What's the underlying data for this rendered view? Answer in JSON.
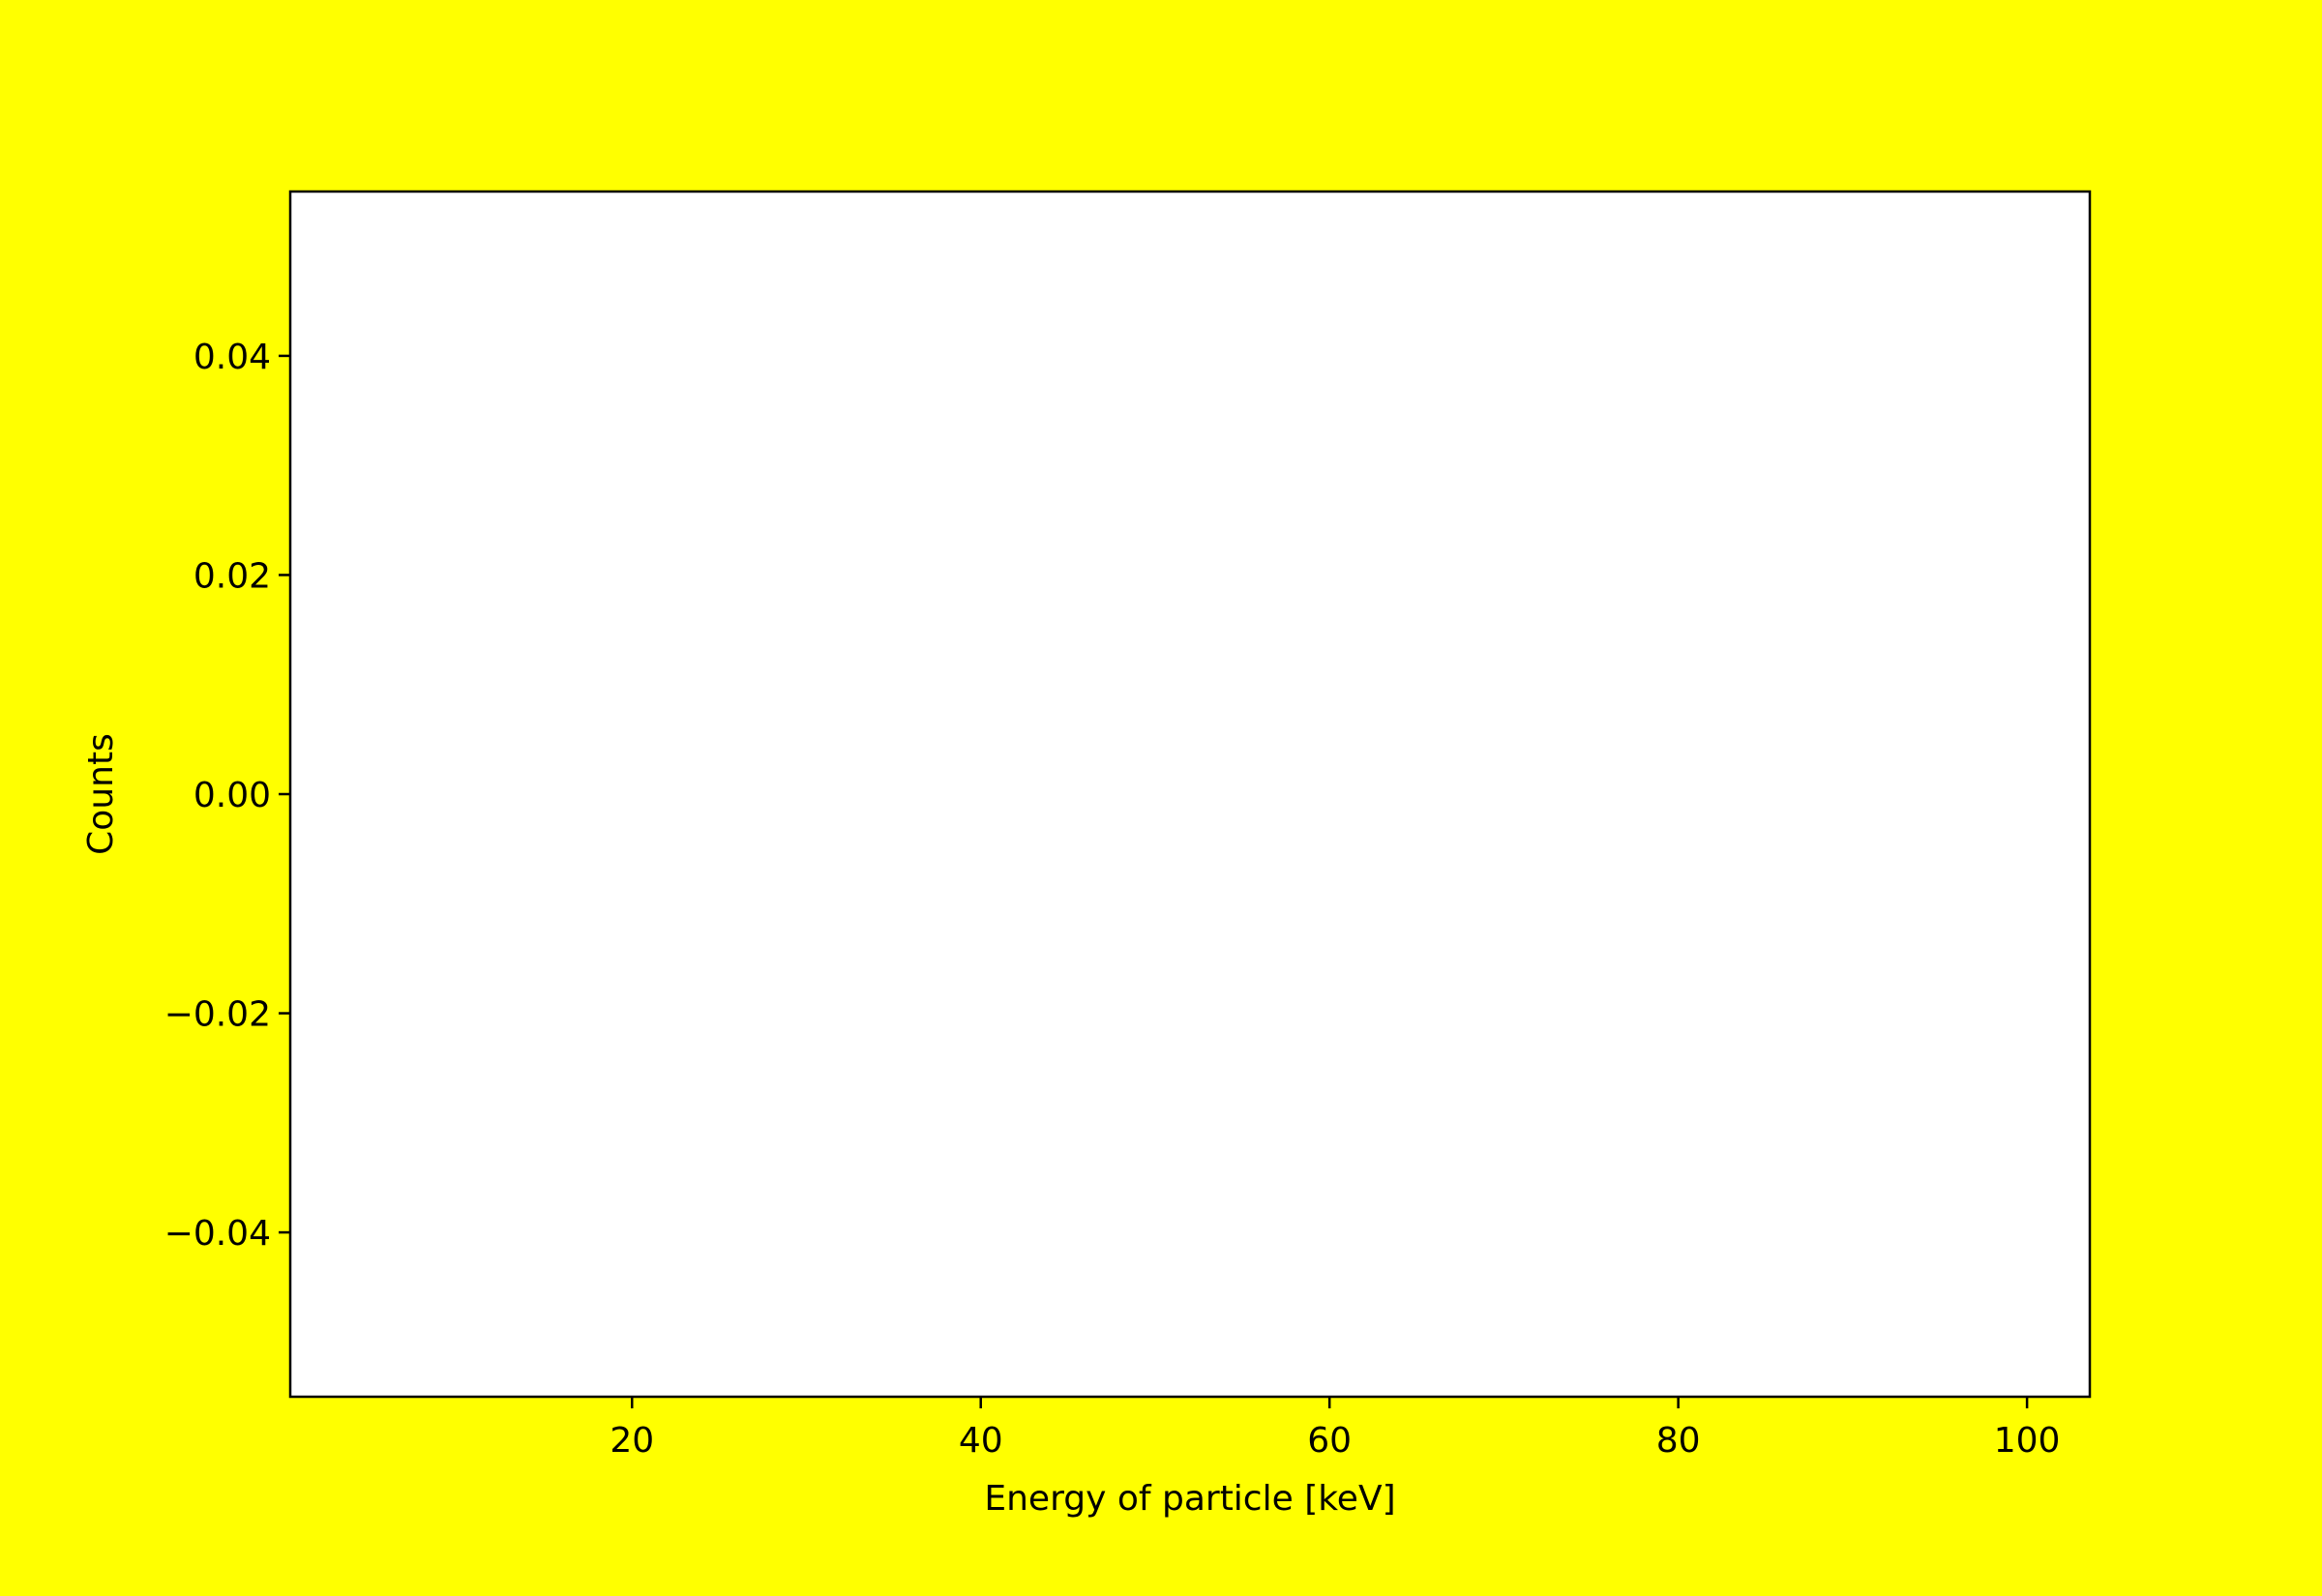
{
  "colors": {
    "figure_background": "#ffff00",
    "axes_background": "#ffffff",
    "axes_edge": "#000000",
    "text": "#000000"
  },
  "chart_data": {
    "type": "line",
    "title": "",
    "xlabel": "Energy of particle [keV]",
    "ylabel": "Counts",
    "xlim": [
      0.4,
      103.6
    ],
    "ylim": [
      -0.055,
      0.055
    ],
    "xticks": [
      {
        "value": 20,
        "label": "20"
      },
      {
        "value": 40,
        "label": "40"
      },
      {
        "value": 60,
        "label": "60"
      },
      {
        "value": 80,
        "label": "80"
      },
      {
        "value": 100,
        "label": "100"
      }
    ],
    "yticks": [
      {
        "value": 0.04,
        "label": "0.04"
      },
      {
        "value": 0.02,
        "label": "0.02"
      },
      {
        "value": 0.0,
        "label": "0.00"
      },
      {
        "value": -0.02,
        "label": "−0.02"
      },
      {
        "value": -0.04,
        "label": "−0.04"
      }
    ],
    "series": [],
    "grid": false,
    "legend": false
  }
}
